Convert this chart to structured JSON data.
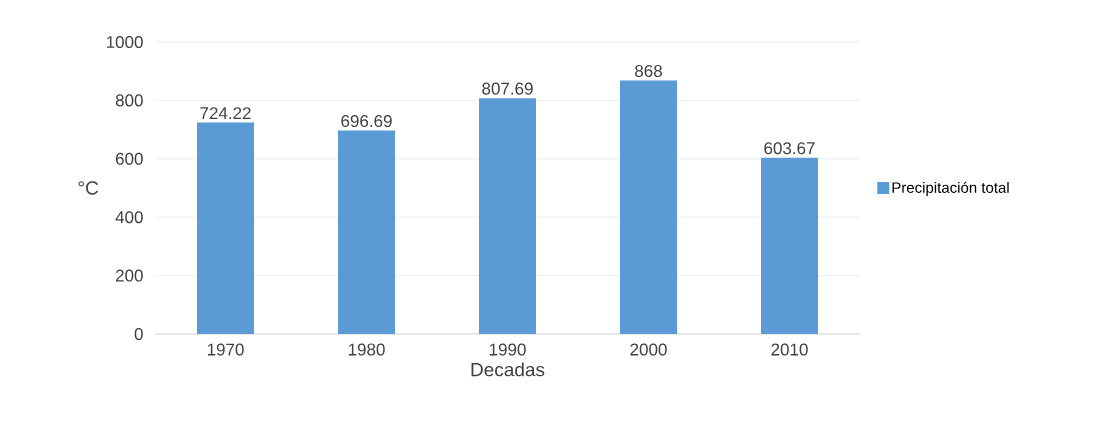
{
  "chart_data": {
    "type": "bar",
    "xlabel": "Decadas",
    "ylabel": "°C",
    "categories": [
      "1970",
      "1980",
      "1990",
      "2000",
      "2010"
    ],
    "series": [
      {
        "name": "Precipitación total",
        "color": "#5b9bd5",
        "values": [
          724.22,
          696.69,
          807.69,
          868,
          603.67
        ],
        "value_labels": [
          "724.22",
          "696.69",
          "807.69",
          "868",
          "603.67"
        ]
      }
    ],
    "ylim": [
      0,
      1000
    ],
    "yticks": [
      0,
      200,
      400,
      600,
      800,
      1000
    ],
    "grid": "y",
    "legend": "right"
  }
}
